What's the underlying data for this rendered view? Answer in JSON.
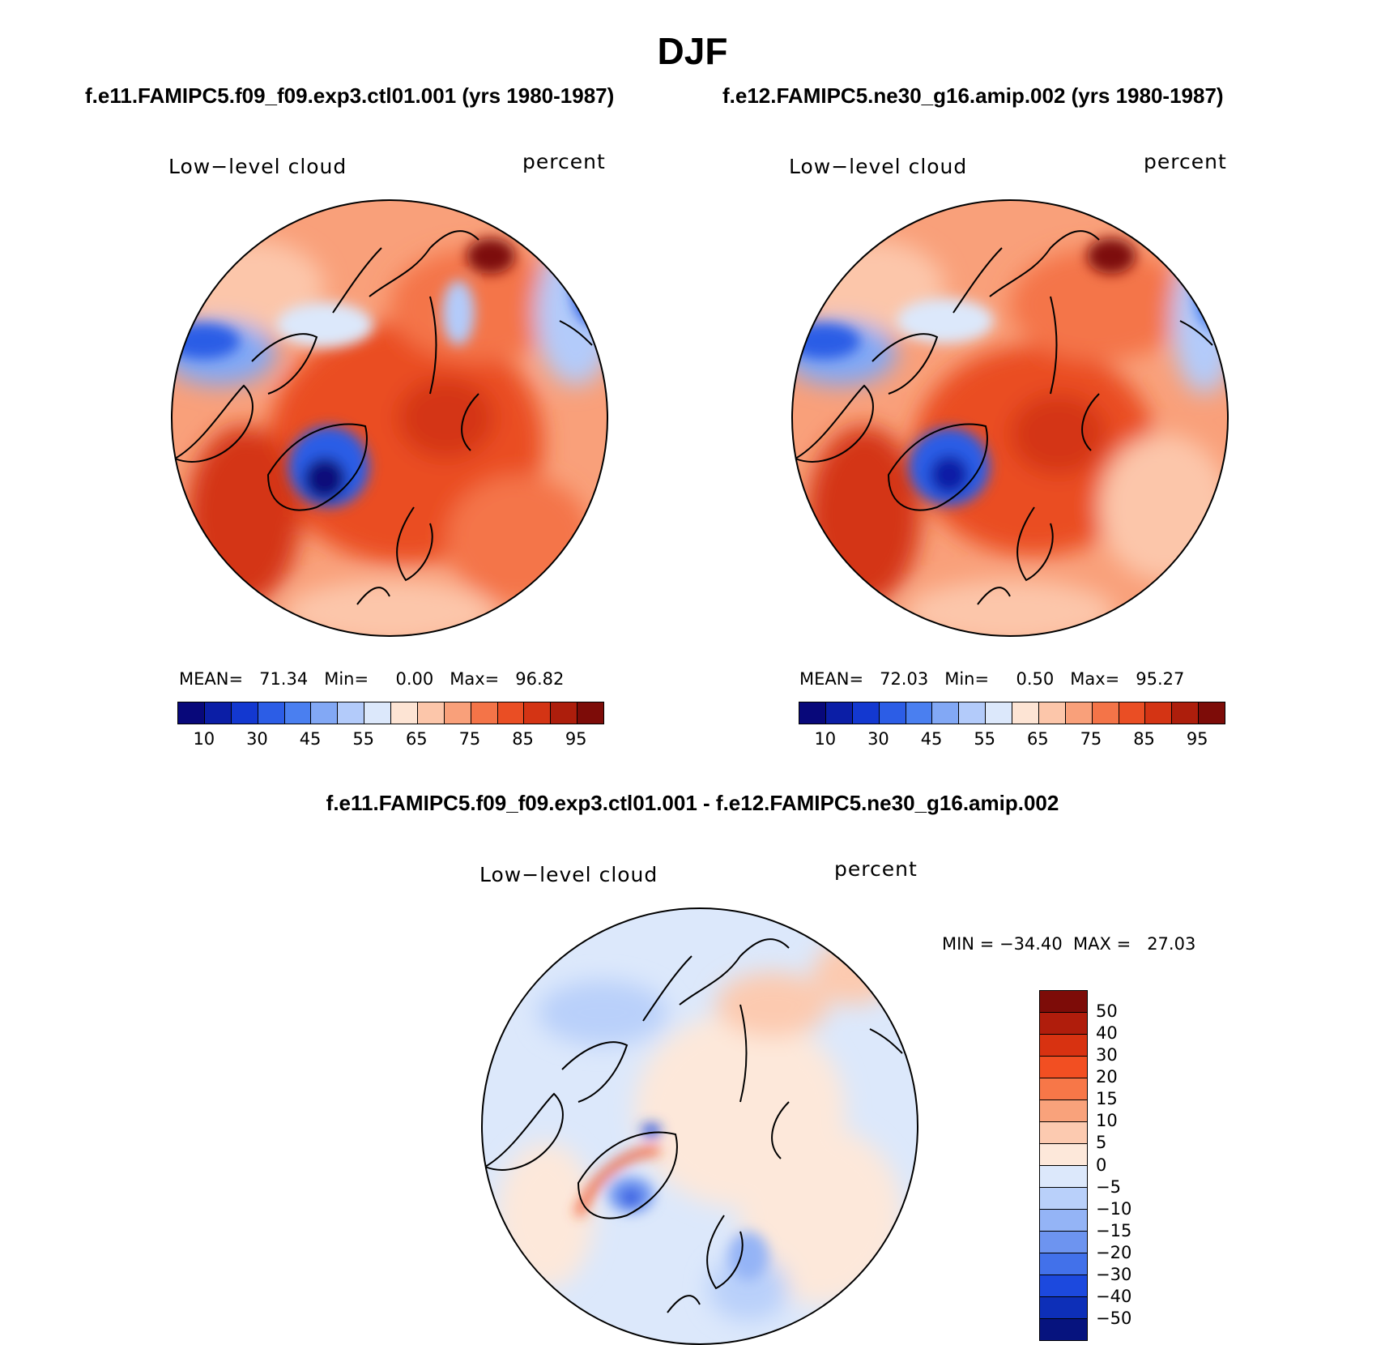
{
  "title": "DJF",
  "panel_left": {
    "case_title": "f.e11.FAMIPC5.f09_f09.exp3.ctl01.001 (yrs 1980-1987)",
    "variable": "Low−level cloud",
    "units": "percent",
    "stats": "MEAN=   71.34   Min=     0.00   Max=   96.82"
  },
  "panel_right": {
    "case_title": "f.e12.FAMIPC5.ne30_g16.amip.002 (yrs 1980-1987)",
    "variable": "Low−level cloud",
    "units": "percent",
    "stats": "MEAN=   72.03   Min=     0.50   Max=   95.27"
  },
  "panel_diff": {
    "case_title": "f.e11.FAMIPC5.f09_f09.exp3.ctl01.001 - f.e12.FAMIPC5.ne30_g16.amip.002",
    "variable": "Low−level cloud",
    "units": "percent",
    "stats": "MIN = −34.40  MAX =   27.03"
  },
  "colorbar_main": {
    "colors": [
      "#08087a",
      "#0b1ea6",
      "#1338d0",
      "#2c5de6",
      "#4a7ff0",
      "#82a8f5",
      "#b3cbfa",
      "#dce8fb",
      "#fde4d4",
      "#fcc6aa",
      "#f9a07a",
      "#f47448",
      "#ea4e24",
      "#d43414",
      "#ad1e0c",
      "#7d0c08"
    ],
    "labels": [
      "10",
      "30",
      "45",
      "55",
      "65",
      "75",
      "85",
      "95"
    ]
  },
  "colorbar_diff": {
    "colors": [
      "#7d0c08",
      "#b01d0c",
      "#d83211",
      "#f24f22",
      "#f77748",
      "#f9a27b",
      "#fccab0",
      "#fde8da",
      "#dce8fb",
      "#b9d0fa",
      "#94b4f6",
      "#6d94f0",
      "#4271ea",
      "#1c49de",
      "#0d2fb8",
      "#06137e"
    ],
    "labels": [
      "50",
      "40",
      "30",
      "20",
      "15",
      "10",
      "5",
      "0",
      "−5",
      "−10",
      "−15",
      "−20",
      "−30",
      "−40",
      "−50"
    ]
  }
}
